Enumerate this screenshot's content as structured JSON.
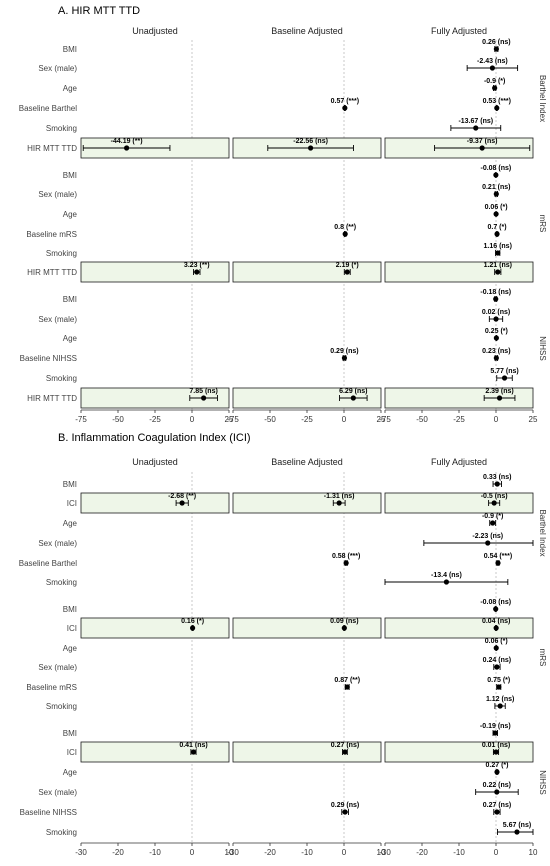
{
  "chart_data": [
    {
      "type": "forest",
      "title": "A. HIR MTT TTD",
      "columns": [
        "Unadjusted",
        "Baseline Adjusted",
        "Fully Adjusted"
      ],
      "xlim": [
        -75,
        25
      ],
      "xticks": [
        -75,
        -50,
        -25,
        0,
        25
      ],
      "highlight_variable": "HIR MTT TTD",
      "groups": [
        {
          "outcome": "Barthel Index",
          "rows": [
            {
              "label": "BMI",
              "estimates": [
                null,
                null,
                {
                  "value": 0.26,
                  "lo": -0.8,
                  "hi": 1.3,
                  "sig": "(ns)"
                }
              ]
            },
            {
              "label": "Sex (male)",
              "estimates": [
                null,
                null,
                {
                  "value": -2.43,
                  "lo": -19.5,
                  "hi": 14.6,
                  "sig": "(ns)"
                }
              ]
            },
            {
              "label": "Age",
              "estimates": [
                null,
                null,
                {
                  "value": -0.9,
                  "lo": -1.7,
                  "hi": -0.1,
                  "sig": "(*)"
                }
              ]
            },
            {
              "label": "Baseline Barthel",
              "estimates": [
                null,
                {
                  "value": 0.57,
                  "lo": 0.3,
                  "hi": 0.84,
                  "sig": "(***)"
                },
                {
                  "value": 0.53,
                  "lo": 0.26,
                  "hi": 0.8,
                  "sig": "(***)"
                }
              ]
            },
            {
              "label": "Smoking",
              "estimates": [
                null,
                null,
                {
                  "value": -13.67,
                  "lo": -30.5,
                  "hi": 3.2,
                  "sig": "(ns)"
                }
              ]
            },
            {
              "label": "HIR MTT TTD",
              "estimates": [
                {
                  "value": -44.19,
                  "lo": -73.5,
                  "hi": -14.9,
                  "sig": "(**)"
                },
                {
                  "value": -22.56,
                  "lo": -51.5,
                  "hi": 6.4,
                  "sig": "(ns)"
                },
                {
                  "value": -9.37,
                  "lo": -41.5,
                  "hi": 22.8,
                  "sig": "(ns)"
                }
              ]
            }
          ]
        },
        {
          "outcome": "mRS",
          "rows": [
            {
              "label": "BMI",
              "estimates": [
                null,
                null,
                {
                  "value": -0.08,
                  "lo": -0.2,
                  "hi": 0.04,
                  "sig": "(ns)"
                }
              ]
            },
            {
              "label": "Sex (male)",
              "estimates": [
                null,
                null,
                {
                  "value": 0.21,
                  "lo": -0.6,
                  "hi": 1.0,
                  "sig": "(ns)"
                }
              ]
            },
            {
              "label": "Age",
              "estimates": [
                null,
                null,
                {
                  "value": 0.06,
                  "lo": 0.01,
                  "hi": 0.11,
                  "sig": "(*)"
                }
              ]
            },
            {
              "label": "Baseline mRS",
              "estimates": [
                null,
                {
                  "value": 0.8,
                  "lo": 0.3,
                  "hi": 1.3,
                  "sig": "(**)"
                },
                {
                  "value": 0.7,
                  "lo": 0.2,
                  "hi": 1.2,
                  "sig": "(*)"
                }
              ]
            },
            {
              "label": "Smoking",
              "estimates": [
                null,
                null,
                {
                  "value": 1.16,
                  "lo": -0.3,
                  "hi": 2.6,
                  "sig": "(ns)"
                }
              ]
            },
            {
              "label": "HIR MTT TTD",
              "estimates": [
                {
                  "value": 3.23,
                  "lo": 1.0,
                  "hi": 5.4,
                  "sig": "(**)"
                },
                {
                  "value": 2.19,
                  "lo": 0.2,
                  "hi": 4.2,
                  "sig": "(*)"
                },
                {
                  "value": 1.21,
                  "lo": -0.9,
                  "hi": 3.3,
                  "sig": "(ns)"
                }
              ]
            }
          ]
        },
        {
          "outcome": "NIHSS",
          "rows": [
            {
              "label": "BMI",
              "estimates": [
                null,
                null,
                {
                  "value": -0.18,
                  "lo": -0.8,
                  "hi": 0.5,
                  "sig": "(ns)"
                }
              ]
            },
            {
              "label": "Sex (male)",
              "estimates": [
                null,
                null,
                {
                  "value": 0.02,
                  "lo": -4.5,
                  "hi": 4.5,
                  "sig": "(ns)"
                }
              ]
            },
            {
              "label": "Age",
              "estimates": [
                null,
                null,
                {
                  "value": 0.25,
                  "lo": 0.05,
                  "hi": 0.45,
                  "sig": "(*)"
                }
              ]
            },
            {
              "label": "Baseline NIHSS",
              "estimates": [
                null,
                {
                  "value": 0.29,
                  "lo": -0.6,
                  "hi": 1.2,
                  "sig": "(ns)"
                },
                {
                  "value": 0.23,
                  "lo": -0.6,
                  "hi": 1.1,
                  "sig": "(ns)"
                }
              ]
            },
            {
              "label": "Smoking",
              "estimates": [
                null,
                null,
                {
                  "value": 5.77,
                  "lo": 0.5,
                  "hi": 11.0,
                  "sig": "(ns)"
                }
              ]
            },
            {
              "label": "HIR MTT TTD",
              "estimates": [
                {
                  "value": 7.85,
                  "lo": -1.5,
                  "hi": 17.2,
                  "sig": "(ns)"
                },
                {
                  "value": 6.29,
                  "lo": -3.0,
                  "hi": 15.6,
                  "sig": "(ns)"
                },
                {
                  "value": 2.39,
                  "lo": -8.0,
                  "hi": 12.8,
                  "sig": "(ns)"
                }
              ]
            }
          ]
        }
      ]
    },
    {
      "type": "forest",
      "title": "B. Inflammation Coagulation Index (ICI)",
      "columns": [
        "Unadjusted",
        "Baseline Adjusted",
        "Fully Adjusted"
      ],
      "xlim": [
        -30,
        10
      ],
      "xticks": [
        -30,
        -20,
        -10,
        0,
        10
      ],
      "highlight_variable": "ICI",
      "groups": [
        {
          "outcome": "Barthel Index",
          "rows": [
            {
              "label": "BMI",
              "estimates": [
                null,
                null,
                {
                  "value": 0.33,
                  "lo": -0.8,
                  "hi": 1.5,
                  "sig": "(ns)"
                }
              ]
            },
            {
              "label": "ICI",
              "estimates": [
                {
                  "value": -2.68,
                  "lo": -4.3,
                  "hi": -1.0,
                  "sig": "(**)"
                },
                {
                  "value": -1.31,
                  "lo": -2.9,
                  "hi": 0.3,
                  "sig": "(ns)"
                },
                {
                  "value": -0.5,
                  "lo": -2.0,
                  "hi": 1.0,
                  "sig": "(ns)"
                }
              ]
            },
            {
              "label": "Age",
              "estimates": [
                null,
                null,
                {
                  "value": -0.9,
                  "lo": -1.7,
                  "hi": -0.1,
                  "sig": "(*)"
                }
              ]
            },
            {
              "label": "Sex (male)",
              "estimates": [
                null,
                null,
                {
                  "value": -2.23,
                  "lo": -19.5,
                  "hi": 15.0,
                  "sig": "(ns)"
                }
              ]
            },
            {
              "label": "Baseline Barthel",
              "estimates": [
                null,
                {
                  "value": 0.58,
                  "lo": 0.3,
                  "hi": 0.86,
                  "sig": "(***)"
                },
                {
                  "value": 0.54,
                  "lo": 0.26,
                  "hi": 0.82,
                  "sig": "(***)"
                }
              ]
            },
            {
              "label": "Smoking",
              "estimates": [
                null,
                null,
                {
                  "value": -13.4,
                  "lo": -30.0,
                  "hi": 3.2,
                  "sig": "(ns)"
                }
              ]
            }
          ]
        },
        {
          "outcome": "mRS",
          "rows": [
            {
              "label": "BMI",
              "estimates": [
                null,
                null,
                {
                  "value": -0.08,
                  "lo": -0.2,
                  "hi": 0.04,
                  "sig": "(ns)"
                }
              ]
            },
            {
              "label": "ICI",
              "estimates": [
                {
                  "value": 0.16,
                  "lo": 0.02,
                  "hi": 0.3,
                  "sig": "(*)"
                },
                {
                  "value": 0.09,
                  "lo": -0.05,
                  "hi": 0.23,
                  "sig": "(ns)"
                },
                {
                  "value": 0.04,
                  "lo": -0.1,
                  "hi": 0.18,
                  "sig": "(ns)"
                }
              ]
            },
            {
              "label": "Age",
              "estimates": [
                null,
                null,
                {
                  "value": 0.06,
                  "lo": 0.01,
                  "hi": 0.11,
                  "sig": "(*)"
                }
              ]
            },
            {
              "label": "Sex (male)",
              "estimates": [
                null,
                null,
                {
                  "value": 0.24,
                  "lo": -0.6,
                  "hi": 1.1,
                  "sig": "(ns)"
                }
              ]
            },
            {
              "label": "Baseline mRS",
              "estimates": [
                null,
                {
                  "value": 0.87,
                  "lo": 0.35,
                  "hi": 1.39,
                  "sig": "(**)"
                },
                {
                  "value": 0.75,
                  "lo": 0.2,
                  "hi": 1.3,
                  "sig": "(*)"
                }
              ]
            },
            {
              "label": "Smoking",
              "estimates": [
                null,
                null,
                {
                  "value": 1.12,
                  "lo": -0.3,
                  "hi": 2.5,
                  "sig": "(ns)"
                }
              ]
            }
          ]
        },
        {
          "outcome": "NIHSS",
          "rows": [
            {
              "label": "BMI",
              "estimates": [
                null,
                null,
                {
                  "value": -0.19,
                  "lo": -0.8,
                  "hi": 0.4,
                  "sig": "(ns)"
                }
              ]
            },
            {
              "label": "ICI",
              "estimates": [
                {
                  "value": 0.41,
                  "lo": -0.3,
                  "hi": 1.1,
                  "sig": "(ns)"
                },
                {
                  "value": 0.27,
                  "lo": -0.4,
                  "hi": 0.9,
                  "sig": "(ns)"
                },
                {
                  "value": 0.01,
                  "lo": -0.7,
                  "hi": 0.7,
                  "sig": "(ns)"
                }
              ]
            },
            {
              "label": "Age",
              "estimates": [
                null,
                null,
                {
                  "value": 0.27,
                  "lo": 0.06,
                  "hi": 0.48,
                  "sig": "(*)"
                }
              ]
            },
            {
              "label": "Sex (male)",
              "estimates": [
                null,
                null,
                {
                  "value": 0.22,
                  "lo": -5.5,
                  "hi": 6.0,
                  "sig": "(ns)"
                }
              ]
            },
            {
              "label": "Baseline NIHSS",
              "estimates": [
                null,
                {
                  "value": 0.29,
                  "lo": -0.6,
                  "hi": 1.2,
                  "sig": "(ns)"
                },
                {
                  "value": 0.27,
                  "lo": -0.6,
                  "hi": 1.1,
                  "sig": "(ns)"
                }
              ]
            },
            {
              "label": "Smoking",
              "estimates": [
                null,
                null,
                {
                  "value": 5.67,
                  "lo": 0.4,
                  "hi": 10.9,
                  "sig": "(ns)"
                }
              ]
            }
          ]
        }
      ]
    }
  ],
  "colors": {
    "highlight_fill": "#eef6e8",
    "highlight_border": "#1a1a1a",
    "zero_line": "#bbbbbb",
    "point": "#000000"
  }
}
